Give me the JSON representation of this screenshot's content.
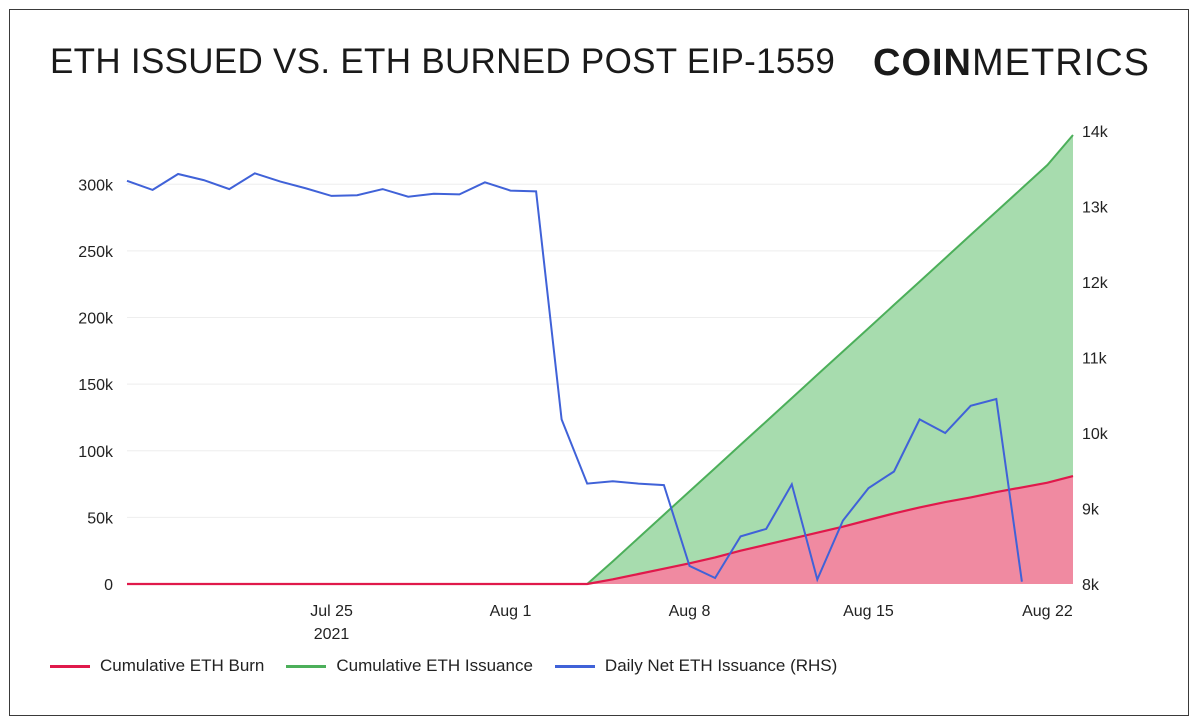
{
  "header": {
    "title": "ETH ISSUED VS. ETH BURNED POST EIP-1559",
    "logo_bold": "COIN",
    "logo_light": "METRICS"
  },
  "colors": {
    "burn": "#e0194b",
    "burn_fill": "#f08aa1",
    "issuance": "#4caf5a",
    "issuance_fill": "#a7dcae",
    "daily": "#4062d8",
    "grid": "#eeeeee"
  },
  "chart_data": {
    "type": "area",
    "title": "ETH ISSUED VS. ETH BURNED POST EIP-1559",
    "x_ticks": [
      {
        "label": "Jul 25",
        "sublabel": "2021",
        "day": 8
      },
      {
        "label": "Aug 1",
        "sublabel": "",
        "day": 15
      },
      {
        "label": "Aug 8",
        "sublabel": "",
        "day": 22
      },
      {
        "label": "Aug 15",
        "sublabel": "",
        "day": 29
      },
      {
        "label": "Aug 22",
        "sublabel": "",
        "day": 36
      }
    ],
    "x_domain": [
      "Jul 17",
      "Aug 23"
    ],
    "y_left": {
      "min": 0,
      "max": 340000,
      "ticks": [
        0,
        50000,
        100000,
        150000,
        200000,
        250000,
        300000
      ],
      "tick_labels": [
        "0",
        "50k",
        "100k",
        "150k",
        "200k",
        "250k",
        "300k"
      ]
    },
    "y_right": {
      "min": 8000,
      "max": 14000,
      "ticks": [
        8000,
        9000,
        10000,
        11000,
        12000,
        13000,
        14000
      ],
      "tick_labels": [
        "8k",
        "9k",
        "10k",
        "11k",
        "12k",
        "13k",
        "14k"
      ]
    },
    "grid": true,
    "legend_position": "bottom",
    "series": [
      {
        "name": "Cumulative ETH Burn",
        "axis": "left",
        "style": "area",
        "points": [
          [
            "Jul 17",
            0
          ],
          [
            "Jul 18",
            0
          ],
          [
            "Jul 19",
            0
          ],
          [
            "Jul 20",
            0
          ],
          [
            "Jul 21",
            0
          ],
          [
            "Jul 22",
            0
          ],
          [
            "Jul 23",
            0
          ],
          [
            "Jul 24",
            0
          ],
          [
            "Jul 25",
            0
          ],
          [
            "Jul 26",
            0
          ],
          [
            "Jul 27",
            0
          ],
          [
            "Jul 28",
            0
          ],
          [
            "Jul 29",
            0
          ],
          [
            "Jul 30",
            0
          ],
          [
            "Jul 31",
            0
          ],
          [
            "Aug 1",
            0
          ],
          [
            "Aug 2",
            0
          ],
          [
            "Aug 3",
            0
          ],
          [
            "Aug 4",
            0
          ],
          [
            "Aug 5",
            3500
          ],
          [
            "Aug 6",
            7500
          ],
          [
            "Aug 7",
            11500
          ],
          [
            "Aug 8",
            15500
          ],
          [
            "Aug 9",
            20000
          ],
          [
            "Aug 10",
            25000
          ],
          [
            "Aug 11",
            29500
          ],
          [
            "Aug 12",
            34000
          ],
          [
            "Aug 13",
            38500
          ],
          [
            "Aug 14",
            43000
          ],
          [
            "Aug 15",
            48000
          ],
          [
            "Aug 16",
            53000
          ],
          [
            "Aug 17",
            57500
          ],
          [
            "Aug 18",
            61500
          ],
          [
            "Aug 19",
            65000
          ],
          [
            "Aug 20",
            69000
          ],
          [
            "Aug 21",
            72500
          ],
          [
            "Aug 22",
            76000
          ],
          [
            "Aug 23",
            81000
          ]
        ]
      },
      {
        "name": "Cumulative ETH Issuance",
        "axis": "left",
        "style": "area",
        "points": [
          [
            "Jul 17",
            0
          ],
          [
            "Jul 18",
            0
          ],
          [
            "Jul 19",
            0
          ],
          [
            "Jul 20",
            0
          ],
          [
            "Jul 21",
            0
          ],
          [
            "Jul 22",
            0
          ],
          [
            "Jul 23",
            0
          ],
          [
            "Jul 24",
            0
          ],
          [
            "Jul 25",
            0
          ],
          [
            "Jul 26",
            0
          ],
          [
            "Jul 27",
            0
          ],
          [
            "Jul 28",
            0
          ],
          [
            "Jul 29",
            0
          ],
          [
            "Jul 30",
            0
          ],
          [
            "Jul 31",
            0
          ],
          [
            "Aug 1",
            0
          ],
          [
            "Aug 2",
            0
          ],
          [
            "Aug 3",
            0
          ],
          [
            "Aug 4",
            0
          ],
          [
            "Aug 5",
            17000
          ],
          [
            "Aug 6",
            34500
          ],
          [
            "Aug 7",
            52000
          ],
          [
            "Aug 8",
            69500
          ],
          [
            "Aug 9",
            87000
          ],
          [
            "Aug 10",
            104500
          ],
          [
            "Aug 11",
            122000
          ],
          [
            "Aug 12",
            139500
          ],
          [
            "Aug 13",
            157000
          ],
          [
            "Aug 14",
            174500
          ],
          [
            "Aug 15",
            192000
          ],
          [
            "Aug 16",
            209500
          ],
          [
            "Aug 17",
            227000
          ],
          [
            "Aug 18",
            244500
          ],
          [
            "Aug 19",
            262000
          ],
          [
            "Aug 20",
            279500
          ],
          [
            "Aug 21",
            297000
          ],
          [
            "Aug 22",
            314500
          ],
          [
            "Aug 23",
            337000
          ]
        ]
      },
      {
        "name": "Daily Net ETH Issuance (RHS)",
        "axis": "right",
        "style": "line",
        "points": [
          [
            "Jul 17",
            13340
          ],
          [
            "Jul 18",
            13220
          ],
          [
            "Jul 19",
            13430
          ],
          [
            "Jul 20",
            13350
          ],
          [
            "Jul 21",
            13230
          ],
          [
            "Jul 22",
            13440
          ],
          [
            "Jul 23",
            13330
          ],
          [
            "Jul 24",
            13240
          ],
          [
            "Jul 25",
            13140
          ],
          [
            "Jul 26",
            13150
          ],
          [
            "Jul 27",
            13230
          ],
          [
            "Jul 28",
            13130
          ],
          [
            "Jul 29",
            13170
          ],
          [
            "Jul 30",
            13160
          ],
          [
            "Jul 31",
            13320
          ],
          [
            "Aug 1",
            13210
          ],
          [
            "Aug 2",
            13200
          ],
          [
            "Aug 3",
            10180
          ],
          [
            "Aug 4",
            9330
          ],
          [
            "Aug 5",
            9360
          ],
          [
            "Aug 6",
            9330
          ],
          [
            "Aug 7",
            9310
          ],
          [
            "Aug 8",
            8240
          ],
          [
            "Aug 9",
            8080
          ],
          [
            "Aug 10",
            8630
          ],
          [
            "Aug 11",
            8730
          ],
          [
            "Aug 12",
            9320
          ],
          [
            "Aug 13",
            8060
          ],
          [
            "Aug 14",
            8840
          ],
          [
            "Aug 15",
            9270
          ],
          [
            "Aug 16",
            9490
          ],
          [
            "Aug 17",
            10180
          ],
          [
            "Aug 18",
            10000
          ],
          [
            "Aug 19",
            10360
          ],
          [
            "Aug 20",
            10450
          ],
          [
            "Aug 21",
            8030
          ]
        ]
      }
    ]
  }
}
